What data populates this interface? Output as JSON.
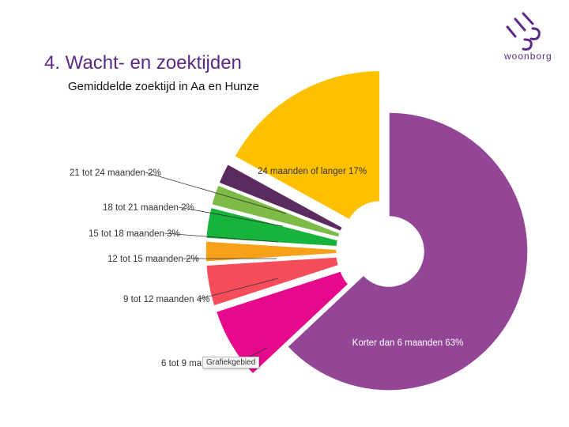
{
  "slide": {
    "title": "4. Wacht- en zoektijden",
    "subtitle": "Gemiddelde zoektijd in Aa en Hunze"
  },
  "logo": {
    "text": "woonborg",
    "icon": "woonborg-logo-icon"
  },
  "tooltip": {
    "text": "Grafiekgebied"
  },
  "chart_data": {
    "type": "pie",
    "style": "exploded-doughnut",
    "title": "",
    "slices": [
      {
        "label": "Korter dan 6 maanden",
        "value": 63,
        "display": "Korter dan 6 maanden 63%",
        "color": "#944696"
      },
      {
        "label": "6 tot 9 maanden",
        "value": 7,
        "display": "6 tot 9 ma",
        "color": "#e6098c"
      },
      {
        "label": "9 tot 12 maanden",
        "value": 4,
        "display": "9 tot 12 maanden 4%",
        "color": "#f54d5a"
      },
      {
        "label": "12 tot 15 maanden",
        "value": 2,
        "display": "12 tot 15 maanden 2%",
        "color": "#f7a11a"
      },
      {
        "label": "15 tot 18 maanden",
        "value": 3,
        "display": "15 tot 18 maanden 3%",
        "color": "#17b33a"
      },
      {
        "label": "18 tot 21 maanden",
        "value": 2,
        "display": "18 tot 21 maanden 2%",
        "color": "#7ebb46"
      },
      {
        "label": "21 tot 24 maanden",
        "value": 2,
        "display": "21 tot 24 maanden 2%",
        "color": "#5b2a5e"
      },
      {
        "label": "24 maanden of langer",
        "value": 17,
        "display": "24 maanden of langer 17%",
        "color": "#ffc000"
      }
    ]
  }
}
